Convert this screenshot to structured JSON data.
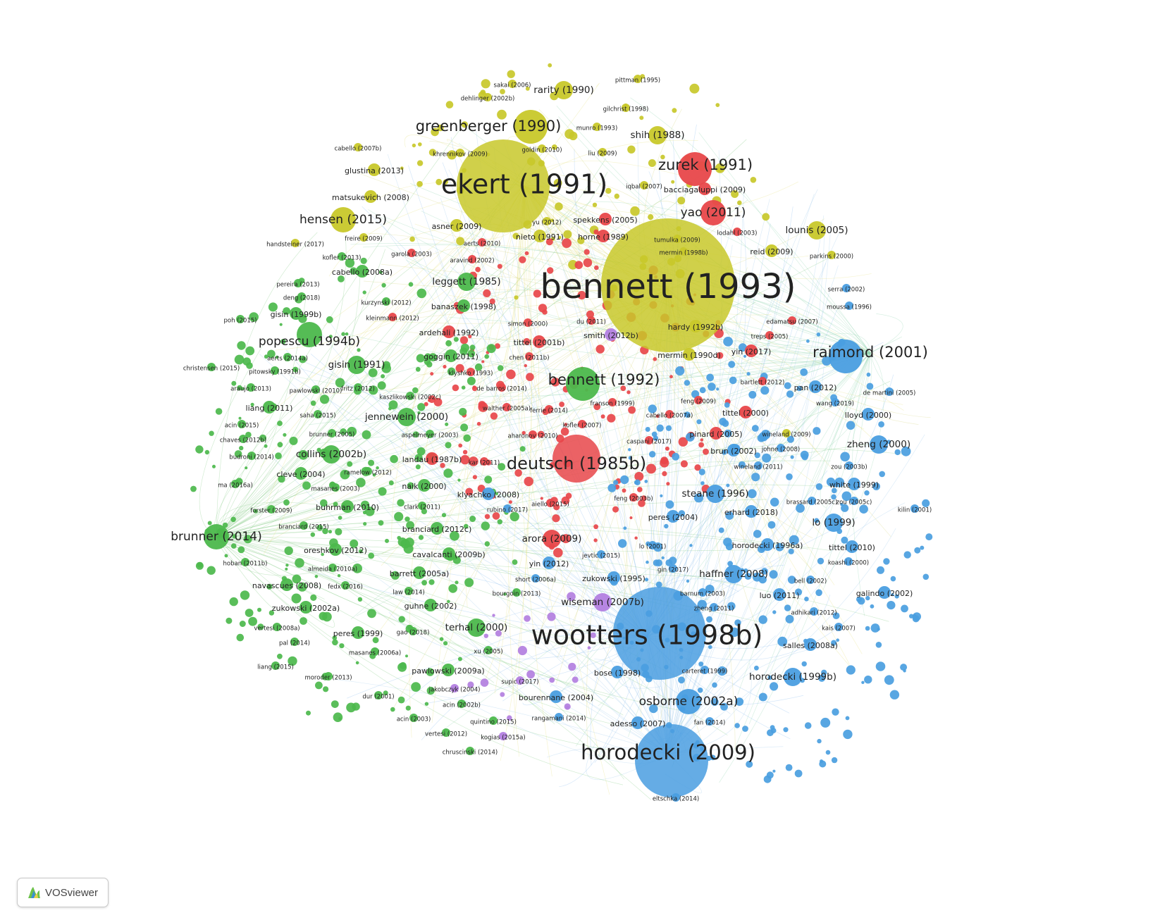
{
  "app": {
    "logo_text": "VOSviewer"
  },
  "colors": {
    "yellow": "#c8c82a",
    "red": "#e8474a",
    "green": "#4cb84c",
    "blue": "#4a9ee0",
    "purple": "#b37fe0"
  },
  "clusters": [
    {
      "id": "yellow",
      "color": "#c8c82a",
      "nodes": [
        {
          "label": "bennett (1993)",
          "weight": 10
        },
        {
          "label": "ekert (1991)",
          "weight": 8
        },
        {
          "label": "greenberger (1990)",
          "weight": 5
        },
        {
          "label": "hensen (2015)",
          "weight": 4
        },
        {
          "label": "lounis (2005)",
          "weight": 3
        },
        {
          "label": "rarity (1990)",
          "weight": 3
        },
        {
          "label": "shih (1988)",
          "weight": 3
        },
        {
          "label": "hardy (1992b)",
          "weight": 2
        },
        {
          "label": "glustina (2013)",
          "weight": 2
        },
        {
          "label": "matsukevich (2008)",
          "weight": 2
        },
        {
          "label": "asner (2009)",
          "weight": 2
        },
        {
          "label": "nieto (1991)",
          "weight": 2
        },
        {
          "label": "reid (2009)",
          "weight": 2
        },
        {
          "label": "mermin (1990d)",
          "weight": 2
        },
        {
          "label": "sakai (2006)",
          "weight": 1
        },
        {
          "label": "pittman (1995)",
          "weight": 1
        },
        {
          "label": "dehlinger (2002b)",
          "weight": 1
        },
        {
          "label": "gilchrist (1998)",
          "weight": 1
        },
        {
          "label": "munro (1993)",
          "weight": 1
        },
        {
          "label": "cabello (2007b)",
          "weight": 1
        },
        {
          "label": "khrennikov (2009)",
          "weight": 1
        },
        {
          "label": "goldin (2010)",
          "weight": 1
        },
        {
          "label": "liu (2009)",
          "weight": 1
        },
        {
          "label": "iqbal (2007)",
          "weight": 1
        },
        {
          "label": "handsteiner (2017)",
          "weight": 1
        },
        {
          "label": "freire (2009)",
          "weight": 1
        },
        {
          "label": "yu (2012)",
          "weight": 1
        },
        {
          "label": "tumulka (2009)",
          "weight": 1
        },
        {
          "label": "mermin (1998b)",
          "weight": 1
        },
        {
          "label": "parkins (2000)",
          "weight": 1
        },
        {
          "label": "wineland (2009)",
          "weight": 1
        }
      ]
    },
    {
      "id": "red",
      "color": "#e8474a",
      "nodes": [
        {
          "label": "deutsch (1985b)",
          "weight": 6
        },
        {
          "label": "zurek (1991)",
          "weight": 5
        },
        {
          "label": "yao (2011)",
          "weight": 4
        },
        {
          "label": "arora (2009)",
          "weight": 3
        },
        {
          "label": "bacciagaluppi (2009)",
          "weight": 2
        },
        {
          "label": "spekkens (2005)",
          "weight": 2
        },
        {
          "label": "horne (1989)",
          "weight": 2
        },
        {
          "label": "tittel (2001b)",
          "weight": 2
        },
        {
          "label": "ardehali (1992)",
          "weight": 2
        },
        {
          "label": "tittel (2000)",
          "weight": 2
        },
        {
          "label": "pinard (2005)",
          "weight": 2
        },
        {
          "label": "landau (1987b)",
          "weight": 2
        },
        {
          "label": "yin (2017)",
          "weight": 2
        },
        {
          "label": "lodahl (2003)",
          "weight": 1
        },
        {
          "label": "garola (2003)",
          "weight": 1
        },
        {
          "label": "aerts (2010)",
          "weight": 1
        },
        {
          "label": "aravind (2002)",
          "weight": 1
        },
        {
          "label": "kleinmann (2012)",
          "weight": 1
        },
        {
          "label": "simon (2000)",
          "weight": 1
        },
        {
          "label": "du (2011)",
          "weight": 1
        },
        {
          "label": "chen (2011b)",
          "weight": 1
        },
        {
          "label": "klyshko (1993)",
          "weight": 1
        },
        {
          "label": "de barros (2014)",
          "weight": 1
        },
        {
          "label": "walther (2005a)",
          "weight": 1
        },
        {
          "label": "ferrie (2014)",
          "weight": 1
        },
        {
          "label": "kofler (2007)",
          "weight": 1
        },
        {
          "label": "aharonov (2010)",
          "weight": 1
        },
        {
          "label": "kar (2011)",
          "weight": 1
        },
        {
          "label": "aiello (2015)",
          "weight": 1
        },
        {
          "label": "feng (2003b)",
          "weight": 1
        },
        {
          "label": "franson (1999)",
          "weight": 1
        },
        {
          "label": "cabello (2007a)",
          "weight": 1
        },
        {
          "label": "caspani (2017)",
          "weight": 1
        },
        {
          "label": "feng (2009)",
          "weight": 1
        },
        {
          "label": "bartlett (2012)",
          "weight": 1
        },
        {
          "label": "treps (2005)",
          "weight": 1
        },
        {
          "label": "edamatsu (2007)",
          "weight": 1
        }
      ]
    },
    {
      "id": "green",
      "color": "#4cb84c",
      "nodes": [
        {
          "label": "bennett (1992)",
          "weight": 5
        },
        {
          "label": "popescu (1994b)",
          "weight": 4
        },
        {
          "label": "brunner (2014)",
          "weight": 4
        },
        {
          "label": "gisin (1991)",
          "weight": 3
        },
        {
          "label": "leggett (1985)",
          "weight": 3
        },
        {
          "label": "jennewein (2000)",
          "weight": 3
        },
        {
          "label": "collins (2002b)",
          "weight": 3
        },
        {
          "label": "terhal (2000)",
          "weight": 3
        },
        {
          "label": "barrett (2005a)",
          "weight": 2
        },
        {
          "label": "cavalcanti (2009b)",
          "weight": 2
        },
        {
          "label": "branciard (2012c)",
          "weight": 2
        },
        {
          "label": "naik (2000)",
          "weight": 2
        },
        {
          "label": "buhrman (2010)",
          "weight": 2
        },
        {
          "label": "oreshkov (2012)",
          "weight": 2
        },
        {
          "label": "navascues (2008)",
          "weight": 2
        },
        {
          "label": "zukowski (2002a)",
          "weight": 2
        },
        {
          "label": "peres (1999)",
          "weight": 2
        },
        {
          "label": "pawlowski (2009a)",
          "weight": 2
        },
        {
          "label": "guhne (2002)",
          "weight": 2
        },
        {
          "label": "cleve (2004)",
          "weight": 2
        },
        {
          "label": "liang (2011)",
          "weight": 2
        },
        {
          "label": "banaszek (1998)",
          "weight": 2
        },
        {
          "label": "goggin (2011)",
          "weight": 2
        },
        {
          "label": "gisin (1999b)",
          "weight": 2
        },
        {
          "label": "cabello (2008a)",
          "weight": 2
        },
        {
          "label": "aspelmeyer (2003)",
          "weight": 1
        },
        {
          "label": "kaszlikowski (2002c)",
          "weight": 1
        },
        {
          "label": "kofler (2013)",
          "weight": 1
        },
        {
          "label": "pereira (2013)",
          "weight": 1
        },
        {
          "label": "deng (2018)",
          "weight": 1
        },
        {
          "label": "kurzynski (2012)",
          "weight": 1
        },
        {
          "label": "poh (2015)",
          "weight": 1
        },
        {
          "label": "aerts (2014a)",
          "weight": 1
        },
        {
          "label": "pitowsky (1991b)",
          "weight": 1
        },
        {
          "label": "christensen (2015)",
          "weight": 1
        },
        {
          "label": "araujo (2013)",
          "weight": 1
        },
        {
          "label": "pawlowski (2010)",
          "weight": 1
        },
        {
          "label": "fritz (2012)",
          "weight": 1
        },
        {
          "label": "saha (2015)",
          "weight": 1
        },
        {
          "label": "acin (2015)",
          "weight": 1
        },
        {
          "label": "brunner (2005)",
          "weight": 1
        },
        {
          "label": "chaves (2012b)",
          "weight": 1
        },
        {
          "label": "budroni (2014)",
          "weight": 1
        },
        {
          "label": "ramelow (2012)",
          "weight": 1
        },
        {
          "label": "ma (2016a)",
          "weight": 1
        },
        {
          "label": "masanes (2003)",
          "weight": 1
        },
        {
          "label": "forster (2009)",
          "weight": 1
        },
        {
          "label": "clark (2011)",
          "weight": 1
        },
        {
          "label": "branciard (2015)",
          "weight": 1
        },
        {
          "label": "hoban (2011b)",
          "weight": 1
        },
        {
          "label": "almeida (2010a)",
          "weight": 1
        },
        {
          "label": "fedx (2016)",
          "weight": 1
        },
        {
          "label": "law (2014)",
          "weight": 1
        },
        {
          "label": "bourgoin (2013)",
          "weight": 1
        },
        {
          "label": "vertesi (2008a)",
          "weight": 1
        },
        {
          "label": "gao (2018)",
          "weight": 1
        },
        {
          "label": "pal (2014)",
          "weight": 1
        },
        {
          "label": "masanes (2006a)",
          "weight": 1
        },
        {
          "label": "xu (2005)",
          "weight": 1
        },
        {
          "label": "liang (2015)",
          "weight": 1
        },
        {
          "label": "moroder (2013)",
          "weight": 1
        },
        {
          "label": "dur (2001)",
          "weight": 1
        },
        {
          "label": "acin (2002b)",
          "weight": 1
        },
        {
          "label": "acin (2003)",
          "weight": 1
        },
        {
          "label": "quintino (2015)",
          "weight": 1
        },
        {
          "label": "vertesi (2012)",
          "weight": 1
        },
        {
          "label": "chruscinski (2014)",
          "weight": 1
        }
      ]
    },
    {
      "id": "blue",
      "color": "#4a9ee0",
      "nodes": [
        {
          "label": "wootters (1998b)",
          "weight": 8
        },
        {
          "label": "horodecki (2009)",
          "weight": 7
        },
        {
          "label": "raimond (2001)",
          "weight": 5
        },
        {
          "label": "osborne (2002a)",
          "weight": 4
        },
        {
          "label": "lo (1999)",
          "weight": 3
        },
        {
          "label": "zheng (2000)",
          "weight": 3
        },
        {
          "label": "steane (1996)",
          "weight": 3
        },
        {
          "label": "horodecki (1999b)",
          "weight": 3
        },
        {
          "label": "haffner (2008)",
          "weight": 3
        },
        {
          "label": "pan (2012)",
          "weight": 2
        },
        {
          "label": "lloyd (2000)",
          "weight": 2
        },
        {
          "label": "white (1999)",
          "weight": 2
        },
        {
          "label": "peres (2004)",
          "weight": 2
        },
        {
          "label": "erhard (2018)",
          "weight": 2
        },
        {
          "label": "horodecki (1996a)",
          "weight": 2
        },
        {
          "label": "tittel (2010)",
          "weight": 2
        },
        {
          "label": "galindo (2002)",
          "weight": 2
        },
        {
          "label": "luo (2011)",
          "weight": 2
        },
        {
          "label": "bose (1998)",
          "weight": 2
        },
        {
          "label": "bourennane (2004)",
          "weight": 2
        },
        {
          "label": "adesso (2007)",
          "weight": 2
        },
        {
          "label": "klyachko (2008)",
          "weight": 2
        },
        {
          "label": "yin (2012)",
          "weight": 2
        },
        {
          "label": "brun (2002)",
          "weight": 2
        },
        {
          "label": "salles (2008a)",
          "weight": 2
        },
        {
          "label": "zukowski (1995)",
          "weight": 2
        },
        {
          "label": "serra (2002)",
          "weight": 1
        },
        {
          "label": "moussa (1996)",
          "weight": 1
        },
        {
          "label": "de martini (2005)",
          "weight": 1
        },
        {
          "label": "wang (2019)",
          "weight": 1
        },
        {
          "label": "johne (2008)",
          "weight": 1
        },
        {
          "label": "wineland (2011)",
          "weight": 1
        },
        {
          "label": "zou (2003b)",
          "weight": 1
        },
        {
          "label": "brassard (2005c)",
          "weight": 1
        },
        {
          "label": "zou (2005c)",
          "weight": 1
        },
        {
          "label": "kilin (2001)",
          "weight": 1
        },
        {
          "label": "rubino (2017)",
          "weight": 1
        },
        {
          "label": "lo (2001)",
          "weight": 1
        },
        {
          "label": "jevtic (2015)",
          "weight": 1
        },
        {
          "label": "koashi (2000)",
          "weight": 1
        },
        {
          "label": "gin (2017)",
          "weight": 1
        },
        {
          "label": "bell (2002)",
          "weight": 1
        },
        {
          "label": "short (2006a)",
          "weight": 1
        },
        {
          "label": "barnum (2003)",
          "weight": 1
        },
        {
          "label": "zheng (2011)",
          "weight": 1
        },
        {
          "label": "adhikari (2012)",
          "weight": 1
        },
        {
          "label": "kais (2007)",
          "weight": 1
        },
        {
          "label": "carteret (1999)",
          "weight": 1
        },
        {
          "label": "rangamani (2014)",
          "weight": 1
        },
        {
          "label": "fan (2014)",
          "weight": 1
        },
        {
          "label": "eltschka (2014)",
          "weight": 1
        }
      ]
    },
    {
      "id": "purple",
      "color": "#b37fe0",
      "nodes": [
        {
          "label": "wiseman (2007b)",
          "weight": 3
        },
        {
          "label": "smith (2012b)",
          "weight": 2
        },
        {
          "label": "jakobczyk (2004)",
          "weight": 1
        },
        {
          "label": "supic (2017)",
          "weight": 1
        },
        {
          "label": "kogias (2015a)",
          "weight": 1
        }
      ]
    }
  ]
}
